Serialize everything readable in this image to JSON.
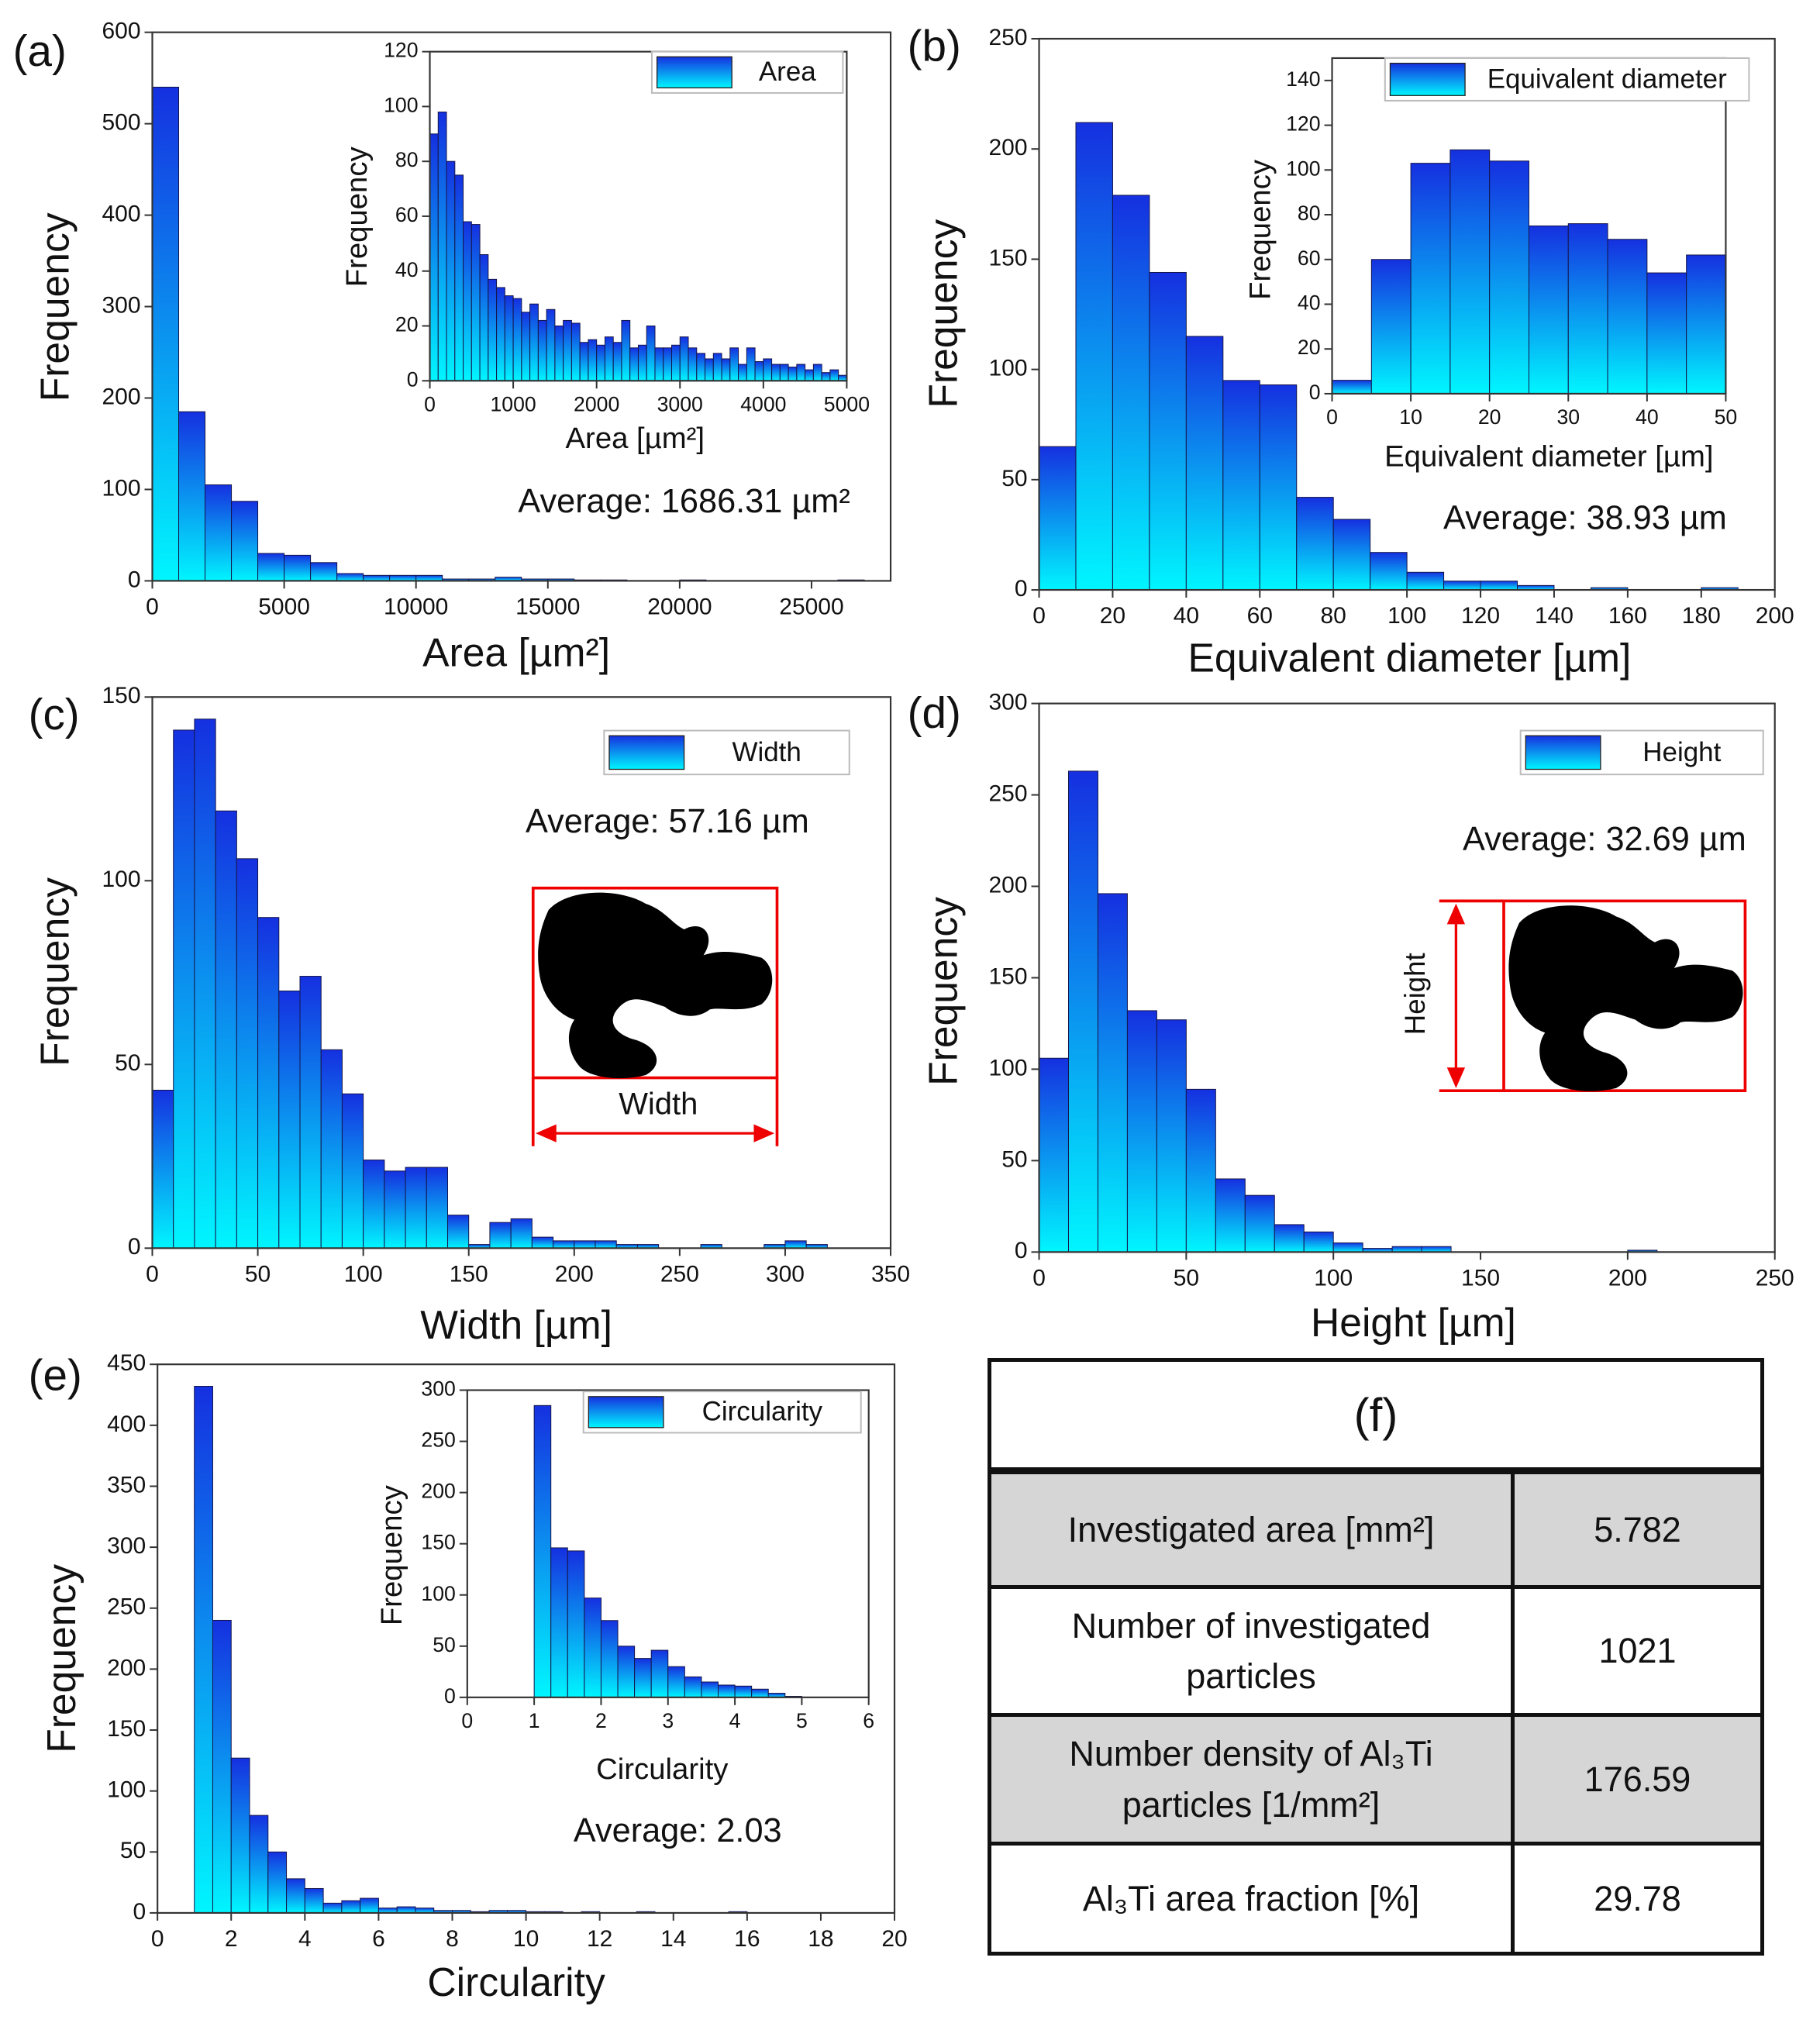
{
  "chart_data": [
    {
      "type": "histogram",
      "panel": "(a)",
      "xlabel": "Area [µm²]",
      "ylabel": "Frequency",
      "legend": "Area",
      "annotation": "Average: 1686.31 µm²",
      "colors": [
        "#1530e0",
        "#00f6ff"
      ],
      "bins": [
        0,
        1000,
        2000,
        3000,
        4000,
        5000,
        6000,
        7000,
        8000,
        9000,
        10000,
        11000,
        12000,
        13000,
        14000,
        15000,
        16000,
        17000,
        18000,
        19000,
        20000,
        21000,
        22000,
        23000,
        24000,
        25000,
        26000,
        27000
      ],
      "values": [
        540,
        185,
        105,
        87,
        30,
        28,
        20,
        8,
        6,
        6,
        6,
        2,
        2,
        4,
        2,
        2,
        1,
        1,
        0,
        0,
        1,
        0,
        0,
        0,
        0,
        0,
        1
      ],
      "xlim": [
        0,
        28000
      ],
      "xticks": [
        0,
        5000,
        10000,
        15000,
        20000,
        25000
      ],
      "ylim": [
        0,
        600
      ],
      "yticks": [
        0,
        100,
        200,
        300,
        400,
        500,
        600
      ],
      "inset": {
        "type": "histogram",
        "xlabel": "Area [µm²]",
        "ylabel": "Frequency",
        "bins": [
          0,
          100,
          200,
          300,
          400,
          500,
          600,
          700,
          800,
          900,
          1000,
          1100,
          1200,
          1300,
          1400,
          1500,
          1600,
          1700,
          1800,
          1900,
          2000,
          2100,
          2200,
          2300,
          2400,
          2500,
          2600,
          2700,
          2800,
          2900,
          3000,
          3100,
          3200,
          3300,
          3400,
          3500,
          3600,
          3700,
          3800,
          3900,
          4000,
          4100,
          4200,
          4300,
          4400,
          4500,
          4600,
          4700,
          4800,
          4900,
          5000
        ],
        "values": [
          90,
          98,
          80,
          75,
          58,
          57,
          46,
          37,
          34,
          31,
          30,
          25,
          28,
          22,
          26,
          20,
          22,
          21,
          14,
          15,
          13,
          16,
          14,
          22,
          12,
          13,
          20,
          12,
          12,
          13,
          16,
          12,
          10,
          8,
          10,
          8,
          12,
          6,
          12,
          7,
          8,
          6,
          6,
          5,
          6,
          4,
          6,
          3,
          4,
          2
        ],
        "xlim": [
          0,
          5000
        ],
        "xticks": [
          0,
          1000,
          2000,
          3000,
          4000,
          5000
        ],
        "ylim": [
          0,
          120
        ],
        "yticks": [
          0,
          20,
          40,
          60,
          80,
          100,
          120
        ]
      }
    },
    {
      "type": "histogram",
      "panel": "(b)",
      "xlabel": "Equivalent diameter [µm]",
      "ylabel": "Frequency",
      "legend": "Equivalent diameter",
      "annotation": "Average: 38.93 µm",
      "colors": [
        "#1530e0",
        "#00f6ff"
      ],
      "bins": [
        0,
        10,
        20,
        30,
        40,
        50,
        60,
        70,
        80,
        90,
        100,
        110,
        120,
        130,
        140,
        150,
        160,
        170,
        180,
        190
      ],
      "values": [
        65,
        212,
        179,
        144,
        115,
        95,
        93,
        42,
        32,
        17,
        8,
        4,
        4,
        2,
        0,
        1,
        0,
        0,
        1
      ],
      "xlim": [
        0,
        200
      ],
      "xticks": [
        0,
        20,
        40,
        60,
        80,
        100,
        120,
        140,
        160,
        180,
        200
      ],
      "ylim": [
        0,
        250
      ],
      "yticks": [
        0,
        50,
        100,
        150,
        200,
        250
      ],
      "inset": {
        "type": "histogram",
        "xlabel": "Equivalent diameter [µm]",
        "ylabel": "Frequency",
        "bins": [
          0,
          5,
          10,
          15,
          20,
          25,
          30,
          35,
          40,
          45,
          50
        ],
        "values": [
          6,
          60,
          103,
          109,
          104,
          75,
          76,
          69,
          54,
          62
        ],
        "xlim": [
          0,
          50
        ],
        "xticks": [
          0,
          10,
          20,
          30,
          40,
          50
        ],
        "ylim": [
          0,
          150
        ],
        "yticks": [
          0,
          20,
          40,
          60,
          80,
          100,
          120,
          140
        ]
      }
    },
    {
      "type": "histogram",
      "panel": "(c)",
      "xlabel": "Width [µm]",
      "ylabel": "Frequency",
      "legend": "Width",
      "annotation": "Average: 57.16 µm",
      "diagram_label": "Width",
      "colors": [
        "#1530e0",
        "#00f6ff"
      ],
      "bins": [
        0,
        10,
        20,
        30,
        40,
        50,
        60,
        70,
        80,
        90,
        100,
        110,
        120,
        130,
        140,
        150,
        160,
        170,
        180,
        190,
        200,
        210,
        220,
        230,
        240,
        250,
        260,
        270,
        280,
        290,
        300,
        310,
        320
      ],
      "values": [
        43,
        141,
        144,
        119,
        106,
        90,
        70,
        74,
        54,
        42,
        24,
        21,
        22,
        22,
        9,
        1,
        7,
        8,
        3,
        2,
        2,
        2,
        1,
        1,
        0,
        0,
        1,
        0,
        0,
        1,
        2,
        1
      ],
      "xlim": [
        0,
        350
      ],
      "xticks": [
        0,
        50,
        100,
        150,
        200,
        250,
        300,
        350
      ],
      "ylim": [
        0,
        150
      ],
      "yticks": [
        0,
        50,
        100,
        150
      ]
    },
    {
      "type": "histogram",
      "panel": "(d)",
      "xlabel": "Height [µm]",
      "ylabel": "Frequency",
      "legend": "Height",
      "annotation": "Average: 32.69 µm",
      "diagram_label": "Height",
      "colors": [
        "#1530e0",
        "#00f6ff"
      ],
      "bins": [
        0,
        10,
        20,
        30,
        40,
        50,
        60,
        70,
        80,
        90,
        100,
        110,
        120,
        130,
        140,
        150,
        160,
        170,
        180,
        190,
        200,
        210
      ],
      "values": [
        106,
        263,
        196,
        132,
        127,
        89,
        40,
        31,
        15,
        11,
        5,
        2,
        3,
        3,
        0,
        0,
        0,
        0,
        0,
        0,
        1
      ],
      "xlim": [
        0,
        250
      ],
      "xticks": [
        0,
        50,
        100,
        150,
        200,
        250
      ],
      "ylim": [
        0,
        300
      ],
      "yticks": [
        0,
        50,
        100,
        150,
        200,
        250,
        300
      ]
    },
    {
      "type": "histogram",
      "panel": "(e)",
      "xlabel": "Circularity",
      "ylabel": "Frequency",
      "legend": "Circularity",
      "annotation": "Average: 2.03",
      "colors": [
        "#1530e0",
        "#00f6ff"
      ],
      "bins": [
        1,
        1.5,
        2,
        2.5,
        3,
        3.5,
        4,
        4.5,
        5,
        5.5,
        6,
        6.5,
        7,
        7.5,
        8,
        8.5,
        9,
        9.5,
        10,
        10.5,
        11,
        11.5,
        12,
        12.5,
        13,
        13.5,
        14,
        14.5,
        15,
        15.5,
        16
      ],
      "values": [
        432,
        240,
        127,
        80,
        50,
        28,
        20,
        8,
        10,
        12,
        4,
        5,
        4,
        2,
        2,
        1,
        2,
        2,
        1,
        1,
        0,
        1,
        0,
        0,
        1,
        0,
        0,
        0,
        0,
        1
      ],
      "xlim": [
        0,
        20
      ],
      "xticks": [
        0,
        2,
        4,
        6,
        8,
        10,
        12,
        14,
        16,
        18,
        20
      ],
      "ylim": [
        0,
        450
      ],
      "yticks": [
        0,
        50,
        100,
        150,
        200,
        250,
        300,
        350,
        400,
        450
      ],
      "inset": {
        "type": "histogram",
        "xlabel": "Circularity",
        "ylabel": "Frequency",
        "bins": [
          1,
          1.25,
          1.5,
          1.75,
          2,
          2.25,
          2.5,
          2.75,
          3,
          3.25,
          3.5,
          3.75,
          4,
          4.25,
          4.5,
          4.75,
          5
        ],
        "values": [
          285,
          146,
          143,
          97,
          75,
          50,
          38,
          46,
          30,
          20,
          15,
          12,
          11,
          8,
          4,
          1
        ],
        "xlim": [
          0,
          6
        ],
        "xticks": [
          0,
          1,
          2,
          3,
          4,
          5,
          6
        ],
        "ylim": [
          0,
          300
        ],
        "yticks": [
          0,
          50,
          100,
          150,
          200,
          250,
          300
        ]
      }
    }
  ],
  "table": {
    "title": "(f)",
    "rows": [
      [
        "Investigated area [mm²]",
        5.782
      ],
      [
        "Number of investigated particles",
        1021
      ],
      [
        "Number density of Al₃Ti particles [1/mm²]",
        176.59
      ],
      [
        "Al₃Ti area fraction [%]",
        29.78
      ]
    ]
  }
}
